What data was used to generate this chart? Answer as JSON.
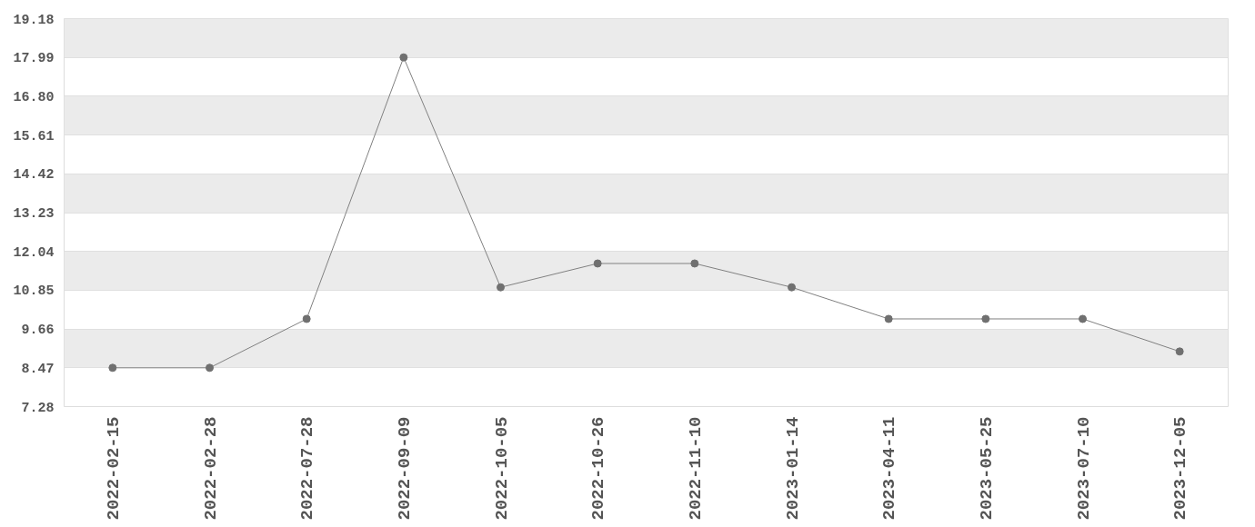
{
  "chart_data": {
    "type": "line",
    "categories": [
      "2022-02-15",
      "2022-02-28",
      "2022-07-28",
      "2022-09-09",
      "2022-10-05",
      "2022-10-26",
      "2022-11-10",
      "2023-01-14",
      "2023-04-11",
      "2023-05-25",
      "2023-07-10",
      "2023-12-05"
    ],
    "series": [
      {
        "color": "#808080",
        "values": [
          8.47,
          8.47,
          9.97,
          17.99,
          10.94,
          11.67,
          11.67,
          10.94,
          9.97,
          9.97,
          9.97,
          8.97
        ]
      }
    ],
    "ylim": [
      7.28,
      19.18
    ],
    "yticks": [
      7.28,
      8.47,
      9.66,
      10.85,
      12.04,
      13.23,
      14.42,
      15.61,
      {
        "value": 16.8,
        "label": "16.80"
      },
      17.99,
      19.18
    ],
    "grid": "y",
    "marker": "circle",
    "line_style": "solid"
  }
}
